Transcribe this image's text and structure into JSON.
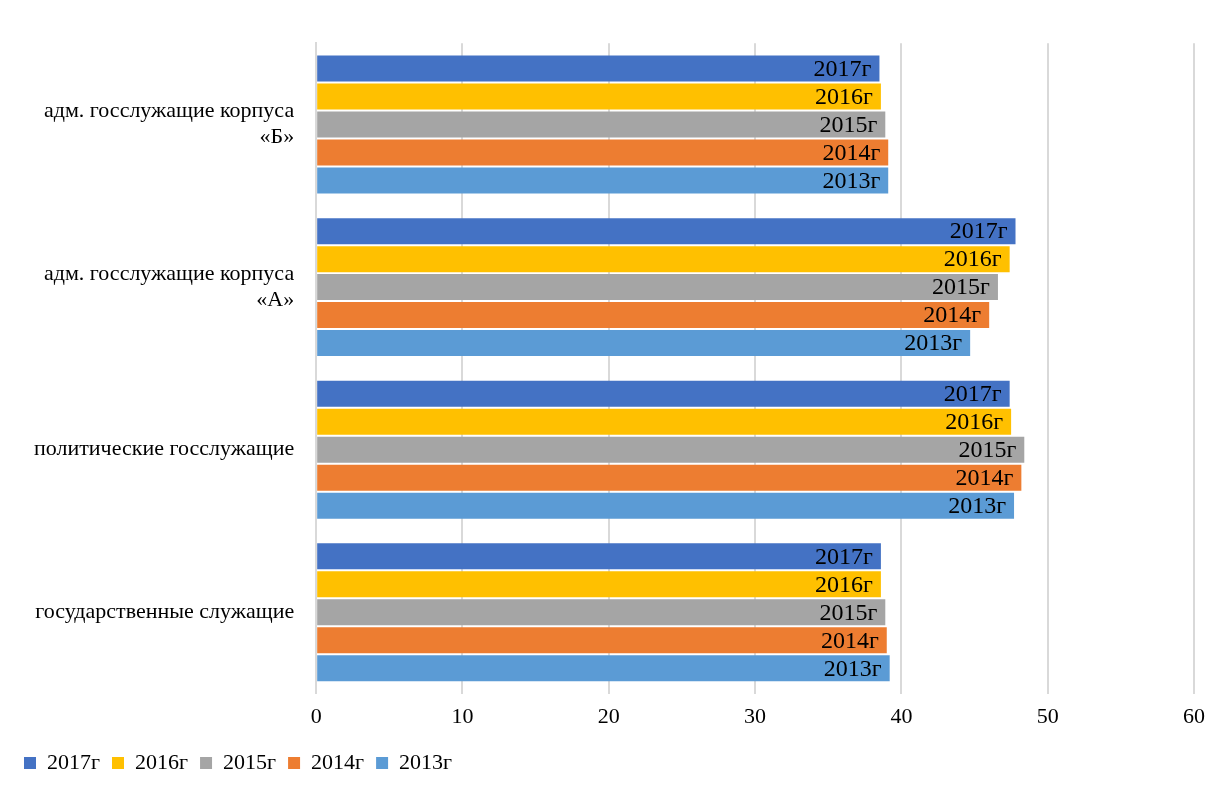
{
  "chart_data": {
    "type": "bar",
    "orientation": "horizontal",
    "categories": [
      "адм. госслужащие корпуса «Б»",
      "адм. госслужащие корпуса «А»",
      "политические госслужащие",
      "государственные служащие"
    ],
    "series": [
      {
        "name": "2017г",
        "color": "#4472c4",
        "values": [
          38.5,
          47.8,
          47.4,
          38.6
        ]
      },
      {
        "name": "2016г",
        "color": "#ffc000",
        "values": [
          38.6,
          47.4,
          47.5,
          38.6
        ]
      },
      {
        "name": "2015г",
        "color": "#a5a5a5",
        "values": [
          38.9,
          46.6,
          48.4,
          38.9
        ]
      },
      {
        "name": "2014г",
        "color": "#ed7d31",
        "values": [
          39.1,
          46.0,
          48.2,
          39.0
        ]
      },
      {
        "name": "2013г",
        "color": "#5b9bd5",
        "values": [
          39.1,
          44.7,
          47.7,
          39.2
        ]
      }
    ],
    "xlim": [
      0,
      60
    ],
    "xticks": [
      0,
      10,
      20,
      30,
      40,
      50,
      60
    ],
    "grid": "x",
    "legend": "bottom left"
  }
}
